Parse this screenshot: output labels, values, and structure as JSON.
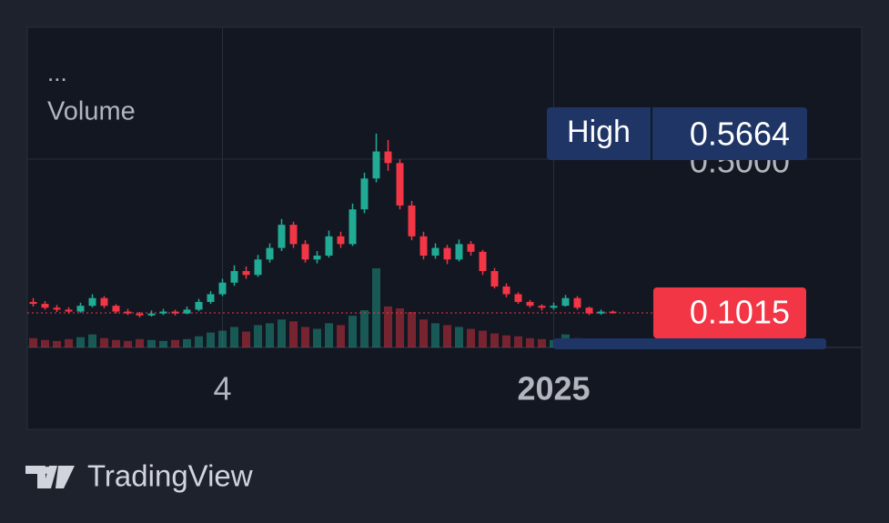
{
  "chart_data": {
    "type": "candlestick",
    "menu": "...",
    "indicator_label": "Volume",
    "categories": [
      null,
      null,
      null,
      null,
      null,
      null,
      null,
      null,
      null,
      null,
      null,
      null,
      null,
      null,
      null,
      null,
      "4",
      null,
      null,
      null,
      null,
      null,
      null,
      null,
      null,
      null,
      null,
      null,
      null,
      null,
      null,
      null,
      null,
      null,
      null,
      null,
      null,
      null,
      null,
      null,
      null,
      null,
      null,
      null,
      "2025",
      null,
      null,
      null,
      null,
      null
    ],
    "open": [
      0.13,
      0.125,
      0.115,
      0.11,
      0.105,
      0.12,
      0.14,
      0.12,
      0.105,
      0.1,
      0.095,
      0.1,
      0.105,
      0.1,
      0.11,
      0.13,
      0.15,
      0.18,
      0.21,
      0.2,
      0.24,
      0.27,
      0.33,
      0.28,
      0.24,
      0.25,
      0.3,
      0.28,
      0.37,
      0.45,
      0.52,
      0.49,
      0.38,
      0.3,
      0.25,
      0.27,
      0.24,
      0.28,
      0.26,
      0.21,
      0.17,
      0.15,
      0.13,
      0.12,
      0.115,
      0.12,
      0.14,
      0.115,
      0.1,
      0.105
    ],
    "high": [
      0.14,
      0.132,
      0.122,
      0.116,
      0.128,
      0.15,
      0.145,
      0.124,
      0.112,
      0.104,
      0.108,
      0.112,
      0.11,
      0.118,
      0.138,
      0.158,
      0.19,
      0.225,
      0.222,
      0.252,
      0.282,
      0.345,
      0.338,
      0.29,
      0.262,
      0.315,
      0.312,
      0.385,
      0.465,
      0.5664,
      0.55,
      0.5,
      0.392,
      0.312,
      0.282,
      0.278,
      0.292,
      0.288,
      0.265,
      0.218,
      0.178,
      0.155,
      0.135,
      0.124,
      0.128,
      0.148,
      0.145,
      0.118,
      0.11,
      0.108
    ],
    "low": [
      0.118,
      0.11,
      0.104,
      0.1,
      0.102,
      0.116,
      0.114,
      0.1,
      0.096,
      0.09,
      0.092,
      0.096,
      0.095,
      0.098,
      0.106,
      0.125,
      0.145,
      0.172,
      0.19,
      0.195,
      0.232,
      0.262,
      0.27,
      0.232,
      0.23,
      0.245,
      0.27,
      0.275,
      0.36,
      0.44,
      0.47,
      0.37,
      0.29,
      0.24,
      0.242,
      0.228,
      0.235,
      0.25,
      0.2,
      0.165,
      0.142,
      0.125,
      0.115,
      0.108,
      0.11,
      0.118,
      0.11,
      0.096,
      0.097,
      0.099
    ],
    "close": [
      0.125,
      0.115,
      0.11,
      0.105,
      0.12,
      0.14,
      0.12,
      0.105,
      0.1,
      0.095,
      0.1,
      0.105,
      0.1,
      0.11,
      0.13,
      0.15,
      0.18,
      0.21,
      0.2,
      0.24,
      0.27,
      0.33,
      0.28,
      0.24,
      0.25,
      0.3,
      0.28,
      0.37,
      0.45,
      0.52,
      0.49,
      0.38,
      0.3,
      0.25,
      0.27,
      0.24,
      0.28,
      0.26,
      0.21,
      0.17,
      0.15,
      0.13,
      0.12,
      0.115,
      0.12,
      0.14,
      0.115,
      0.1,
      0.105,
      0.1015
    ],
    "volume": [
      10,
      8,
      7,
      9,
      11,
      14,
      10,
      8,
      7,
      9,
      8,
      7,
      8,
      9,
      12,
      16,
      18,
      22,
      17,
      24,
      26,
      30,
      28,
      22,
      20,
      26,
      24,
      34,
      40,
      85,
      44,
      42,
      38,
      30,
      26,
      24,
      22,
      20,
      18,
      15,
      13,
      12,
      10,
      9,
      8,
      14,
      10,
      8,
      7,
      6
    ],
    "up_color": "#22ab94",
    "down_color": "#f23645",
    "ylim": [
      0.012,
      0.842
    ],
    "yticks": [
      {
        "value": 0.5,
        "label": "0.5000"
      }
    ],
    "grid": true,
    "high_label": {
      "text": "High",
      "value": 0.5664
    },
    "last_price": 0.1015
  },
  "footer": {
    "brand": "TradingView"
  }
}
